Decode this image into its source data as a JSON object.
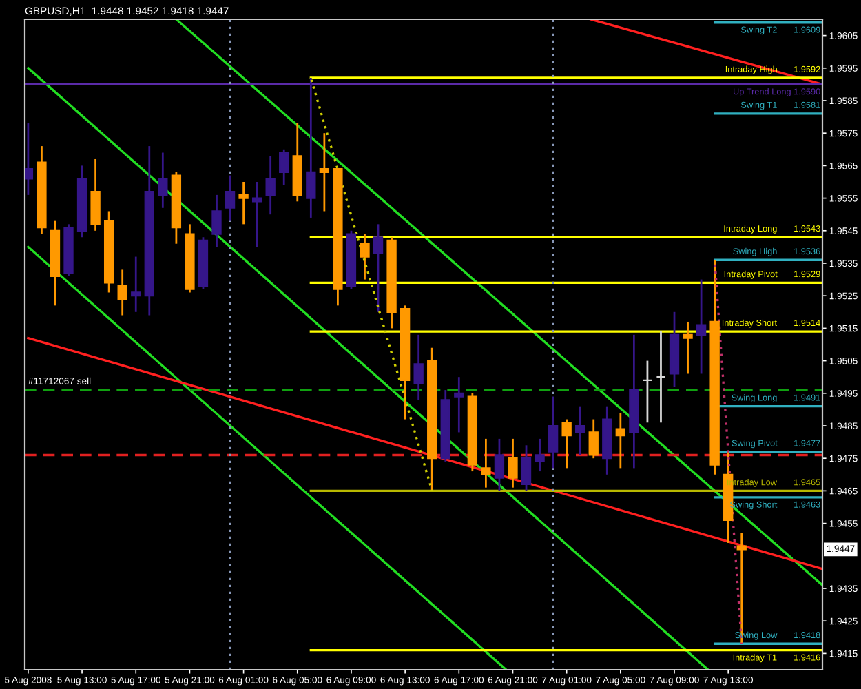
{
  "chart_data": {
    "type": "candlestick",
    "title": "GBPUSD,H1  1.9448 1.9452 1.9418 1.9447",
    "x": [
      "2008-08-05T09:00",
      "2008-08-05T10:00",
      "2008-08-05T11:00",
      "2008-08-05T12:00",
      "2008-08-05T13:00",
      "2008-08-05T14:00",
      "2008-08-05T15:00",
      "2008-08-05T16:00",
      "2008-08-05T17:00",
      "2008-08-05T18:00",
      "2008-08-05T19:00",
      "2008-08-05T20:00",
      "2008-08-05T21:00",
      "2008-08-05T22:00",
      "2008-08-05T23:00",
      "2008-08-06T00:00",
      "2008-08-06T01:00",
      "2008-08-06T02:00",
      "2008-08-06T03:00",
      "2008-08-06T04:00",
      "2008-08-06T05:00",
      "2008-08-06T06:00",
      "2008-08-06T07:00",
      "2008-08-06T08:00",
      "2008-08-06T09:00",
      "2008-08-06T10:00",
      "2008-08-06T11:00",
      "2008-08-06T12:00",
      "2008-08-06T13:00",
      "2008-08-06T14:00",
      "2008-08-06T15:00",
      "2008-08-06T16:00",
      "2008-08-06T17:00",
      "2008-08-06T18:00",
      "2008-08-06T19:00",
      "2008-08-06T20:00",
      "2008-08-06T21:00",
      "2008-08-06T22:00",
      "2008-08-06T23:00",
      "2008-08-07T00:00",
      "2008-08-07T01:00",
      "2008-08-07T02:00",
      "2008-08-07T03:00",
      "2008-08-07T04:00",
      "2008-08-07T05:00",
      "2008-08-07T06:00",
      "2008-08-07T07:00",
      "2008-08-07T08:00",
      "2008-08-07T09:00",
      "2008-08-07T10:00",
      "2008-08-07T11:00",
      "2008-08-07T12:00",
      "2008-08-07T13:00",
      "2008-08-07T14:00"
    ],
    "ohlc": [
      [
        1.9561,
        1.9578,
        1.9556,
        1.9564
      ],
      [
        1.9566,
        1.9571,
        1.9544,
        1.9546
      ],
      [
        1.9545,
        1.9548,
        1.9522,
        1.9531
      ],
      [
        1.9532,
        1.9547,
        1.9531,
        1.9546
      ],
      [
        1.9545,
        1.9565,
        1.9543,
        1.9561
      ],
      [
        1.9557,
        1.9567,
        1.9545,
        1.9547
      ],
      [
        1.9548,
        1.9551,
        1.9526,
        1.9529
      ],
      [
        1.9528,
        1.9533,
        1.9519,
        1.9524
      ],
      [
        1.9525,
        1.9537,
        1.952,
        1.9526
      ],
      [
        1.9525,
        1.9571,
        1.9519,
        1.9557
      ],
      [
        1.9556,
        1.9569,
        1.9552,
        1.9561
      ],
      [
        1.9562,
        1.9563,
        1.9541,
        1.9546
      ],
      [
        1.9544,
        1.9547,
        1.9526,
        1.9527
      ],
      [
        1.9528,
        1.9543,
        1.9527,
        1.9542
      ],
      [
        1.9544,
        1.9556,
        1.954,
        1.9551
      ],
      [
        1.9552,
        1.9562,
        1.9548,
        1.9557
      ],
      [
        1.9556,
        1.956,
        1.9547,
        1.9555
      ],
      [
        1.9554,
        1.956,
        1.954,
        1.9555
      ],
      [
        1.9556,
        1.9568,
        1.955,
        1.9561
      ],
      [
        1.9563,
        1.957,
        1.9559,
        1.9569
      ],
      [
        1.9568,
        1.9578,
        1.9554,
        1.9556
      ],
      [
        1.9555,
        1.9592,
        1.9549,
        1.9563
      ],
      [
        1.9564,
        1.9575,
        1.9551,
        1.9563
      ],
      [
        1.9564,
        1.9564,
        1.9522,
        1.9527
      ],
      [
        1.9528,
        1.9545,
        1.9527,
        1.9544
      ],
      [
        1.9541,
        1.9544,
        1.953,
        1.9537
      ],
      [
        1.9538,
        1.9547,
        1.952,
        1.9543
      ],
      [
        1.9542,
        1.9543,
        1.9515,
        1.952
      ],
      [
        1.9521,
        1.9522,
        1.9487,
        1.9499
      ],
      [
        1.9498,
        1.9513,
        1.9493,
        1.9504
      ],
      [
        1.9505,
        1.9509,
        1.9465,
        1.9475
      ],
      [
        1.9475,
        1.9496,
        1.9474,
        1.9493
      ],
      [
        1.9494,
        1.95,
        1.9483,
        1.9495
      ],
      [
        1.9494,
        1.9495,
        1.9471,
        1.9473
      ],
      [
        1.9472,
        1.9481,
        1.9466,
        1.947
      ],
      [
        1.9469,
        1.9481,
        1.9465,
        1.9476
      ],
      [
        1.9475,
        1.9481,
        1.9466,
        1.9469
      ],
      [
        1.9467,
        1.9479,
        1.9465,
        1.9475
      ],
      [
        1.9474,
        1.9481,
        1.9471,
        1.9476
      ],
      [
        1.9477,
        1.9494,
        1.9472,
        1.9485
      ],
      [
        1.9486,
        1.9487,
        1.9472,
        1.9482
      ],
      [
        1.9483,
        1.9491,
        1.9476,
        1.9485
      ],
      [
        1.9483,
        1.9487,
        1.9475,
        1.9476
      ],
      [
        1.9475,
        1.9491,
        1.947,
        1.9487
      ],
      [
        1.9484,
        1.9489,
        1.9472,
        1.9482
      ],
      [
        1.9483,
        1.9513,
        1.9472,
        1.9496
      ],
      [
        1.9499,
        1.9505,
        1.9486,
        1.9499
      ],
      [
        1.95,
        1.9514,
        1.9486,
        1.95
      ],
      [
        1.9501,
        1.952,
        1.9497,
        1.9513
      ],
      [
        1.9513,
        1.9517,
        1.9501,
        1.9512
      ],
      [
        1.9513,
        1.953,
        1.9501,
        1.9516
      ],
      [
        1.9517,
        1.9536,
        1.947,
        1.9473
      ],
      [
        1.947,
        1.9477,
        1.9449,
        1.9456
      ],
      [
        1.9448,
        1.9452,
        1.9418,
        1.9447
      ]
    ],
    "colors": [
      "#35168a",
      "#ff9900",
      "#ff9900",
      "#35168a",
      "#35168a",
      "#ff9900",
      "#ff9900",
      "#ff9900",
      "#35168a",
      "#35168a",
      "#35168a",
      "#ff9900",
      "#ff9900",
      "#35168a",
      "#35168a",
      "#35168a",
      "#ff9900",
      "#35168a",
      "#35168a",
      "#35168a",
      "#ff9900",
      "#35168a",
      "#ff9900",
      "#ff9900",
      "#35168a",
      "#ff9900",
      "#35168a",
      "#ff9900",
      "#ff9900",
      "#35168a",
      "#ff9900",
      "#35168a",
      "#35168a",
      "#ff9900",
      "#ff9900",
      "#35168a",
      "#ff9900",
      "#35168a",
      "#35168a",
      "#35168a",
      "#ff9900",
      "#35168a",
      "#ff9900",
      "#35168a",
      "#ff9900",
      "#35168a",
      "#d8d8d8",
      "#d8d8d8",
      "#35168a",
      "#ff9900",
      "#35168a",
      "#ff9900",
      "#ff9900",
      "#ff9900"
    ],
    "series": [
      {
        "type": "line",
        "color": "#22dd22",
        "x": [
          "2008-08-05T20:00",
          "2008-08-07T20:00"
        ],
        "values": [
          1.961,
          1.9436
        ]
      },
      {
        "type": "line",
        "color": "#22dd22",
        "x": [
          "2008-08-05T09:00",
          "2008-08-07T11:30"
        ],
        "values": [
          1.9595,
          1.941
        ]
      },
      {
        "type": "line",
        "color": "#22dd22",
        "x": [
          "2008-08-05T09:00",
          "2008-08-06T20:30"
        ],
        "values": [
          1.954,
          1.941
        ]
      },
      {
        "type": "line",
        "color": "#ff2020",
        "x": [
          "2008-08-05T09:00",
          "2008-08-07T20:00"
        ],
        "values": [
          1.9512,
          1.9441
        ]
      },
      {
        "type": "line",
        "color": "#ff2020",
        "x": [
          "2008-08-07T02:48",
          "2008-08-07T20:00"
        ],
        "values": [
          1.961,
          1.959
        ]
      },
      {
        "type": "line",
        "color": "#d0d000",
        "line_style": "dotted",
        "x": [
          "2008-08-06T06:00",
          "2008-08-06T15:00"
        ],
        "values": [
          1.9592,
          1.9465
        ]
      },
      {
        "type": "line",
        "color": "#c0306a",
        "line_style": "dotted",
        "x": [
          "2008-08-07T12:00",
          "2008-08-07T14:00"
        ],
        "values": [
          1.9536,
          1.9418
        ]
      },
      {
        "type": "line",
        "name": "Intraday High",
        "color": "#ffff00",
        "x": [
          "2008-08-06T06:00",
          "2008-08-07T20:00"
        ],
        "values": [
          1.9592,
          1.9592
        ],
        "value_labels": [
          null,
          "1.9592"
        ]
      },
      {
        "type": "line",
        "name": "Intraday Long",
        "color": "#ffff00",
        "x": [
          "2008-08-06T06:00",
          "2008-08-07T20:00"
        ],
        "values": [
          1.9543,
          1.9543
        ],
        "value_labels": [
          null,
          "1.9543"
        ]
      },
      {
        "type": "line",
        "name": "Intraday Pivot",
        "color": "#ffff00",
        "x": [
          "2008-08-06T06:00",
          "2008-08-07T20:00"
        ],
        "values": [
          1.9529,
          1.9529
        ],
        "value_labels": [
          null,
          "1.9529"
        ]
      },
      {
        "type": "line",
        "name": "Intraday Short",
        "color": "#ffff00",
        "x": [
          "2008-08-06T06:00",
          "2008-08-07T20:00"
        ],
        "values": [
          1.9514,
          1.9514
        ],
        "value_labels": [
          null,
          "1.9514"
        ]
      },
      {
        "type": "line",
        "name": "Intraday Low",
        "color": "#b8b800",
        "x": [
          "2008-08-06T06:00",
          "2008-08-07T20:00"
        ],
        "values": [
          1.9465,
          1.9465
        ],
        "value_labels": [
          null,
          "1.9465"
        ]
      },
      {
        "type": "line",
        "name": "Intraday T1",
        "color": "#ffff00",
        "x": [
          "2008-08-06T06:00",
          "2008-08-07T20:00"
        ],
        "values": [
          1.9416,
          1.9416
        ],
        "value_labels": [
          null,
          "1.9416"
        ]
      },
      {
        "type": "line",
        "name": "Swing T2",
        "color": "#30b0c0",
        "x": [
          "2008-08-07T12:00",
          "2008-08-07T20:00"
        ],
        "values": [
          1.9609,
          1.9609
        ],
        "value_labels": [
          null,
          "1.9609"
        ]
      },
      {
        "type": "line",
        "name": "Swing T1",
        "color": "#30b0c0",
        "x": [
          "2008-08-07T12:00",
          "2008-08-07T20:00"
        ],
        "values": [
          1.9581,
          1.9581
        ],
        "value_labels": [
          null,
          "1.9581"
        ]
      },
      {
        "type": "line",
        "name": "Swing High",
        "color": "#30b0c0",
        "x": [
          "2008-08-07T12:00",
          "2008-08-07T20:00"
        ],
        "values": [
          1.9536,
          1.9536
        ],
        "value_labels": [
          null,
          "1.9536"
        ]
      },
      {
        "type": "line",
        "name": "Swing Long",
        "color": "#30b0c0",
        "x": [
          "2008-08-07T12:00",
          "2008-08-07T20:00"
        ],
        "values": [
          1.9491,
          1.9491
        ],
        "value_labels": [
          null,
          "1.9491"
        ]
      },
      {
        "type": "line",
        "name": "Swing Pivot",
        "color": "#30b0c0",
        "x": [
          "2008-08-07T12:00",
          "2008-08-07T20:00"
        ],
        "values": [
          1.9477,
          1.9477
        ],
        "value_labels": [
          null,
          "1.9477"
        ]
      },
      {
        "type": "line",
        "name": "Swing Short",
        "color": "#30b0c0",
        "x": [
          "2008-08-07T12:00",
          "2008-08-07T20:00"
        ],
        "values": [
          1.9463,
          1.9463
        ],
        "value_labels": [
          null,
          "1.9463"
        ]
      },
      {
        "type": "line",
        "name": "Swing Low",
        "color": "#30b0c0",
        "x": [
          "2008-08-07T12:00",
          "2008-08-07T20:00"
        ],
        "values": [
          1.9418,
          1.9418
        ],
        "value_labels": [
          null,
          "1.9418"
        ]
      }
    ],
    "ref_lines": [
      {
        "axis": "y",
        "value": 1.959,
        "label": "Up Trend Long 1.9590",
        "color": "#5a2aa8"
      },
      {
        "axis": "y",
        "value": 1.9496,
        "color": "#10a010",
        "line_style": "dashed"
      },
      {
        "axis": "y",
        "value": 1.9476,
        "color": "#e02020",
        "line_style": "dashed"
      },
      {
        "axis": "x",
        "value": "2008-08-06T00:00",
        "color": "#8898b8",
        "line_style": "dotted"
      },
      {
        "axis": "x",
        "value": "2008-08-07T00:00",
        "color": "#8898b8",
        "line_style": "dotted"
      }
    ],
    "annotations": [
      {
        "text": "#11712067 sell",
        "x": "2008-08-05T11:20",
        "y": 1.9496
      },
      {
        "text": "1.9447",
        "y": 1.9447
      }
    ],
    "xlim": [
      "2008-08-05T08:45",
      "2008-08-07T20:00"
    ],
    "xticks": [
      {
        "value": "2008-08-05T09:00",
        "label": "5 Aug 2008"
      },
      {
        "value": "2008-08-05T13:00",
        "label": "5 Aug 13:00"
      },
      {
        "value": "2008-08-05T17:00",
        "label": "5 Aug 17:00"
      },
      {
        "value": "2008-08-05T21:00",
        "label": "5 Aug 21:00"
      },
      {
        "value": "2008-08-06T01:00",
        "label": "6 Aug 01:00"
      },
      {
        "value": "2008-08-06T05:00",
        "label": "6 Aug 05:00"
      },
      {
        "value": "2008-08-06T09:00",
        "label": "6 Aug 09:00"
      },
      {
        "value": "2008-08-06T13:00",
        "label": "6 Aug 13:00"
      },
      {
        "value": "2008-08-06T17:00",
        "label": "6 Aug 17:00"
      },
      {
        "value": "2008-08-06T21:00",
        "label": "6 Aug 21:00"
      },
      {
        "value": "2008-08-07T01:00",
        "label": "7 Aug 01:00"
      },
      {
        "value": "2008-08-07T05:00",
        "label": "7 Aug 05:00"
      },
      {
        "value": "2008-08-07T09:00",
        "label": "7 Aug 09:00"
      },
      {
        "value": "2008-08-07T13:00",
        "label": "7 Aug 13:00"
      }
    ],
    "ylim": [
      1.941,
      1.961
    ],
    "yticks": [
      1.9415,
      1.9425,
      1.9435,
      1.9455,
      1.9465,
      1.9475,
      1.9485,
      1.9495,
      1.9505,
      1.9515,
      1.9525,
      1.9535,
      1.9545,
      1.9555,
      1.9565,
      1.9575,
      1.9585,
      1.9595,
      1.9605
    ]
  }
}
